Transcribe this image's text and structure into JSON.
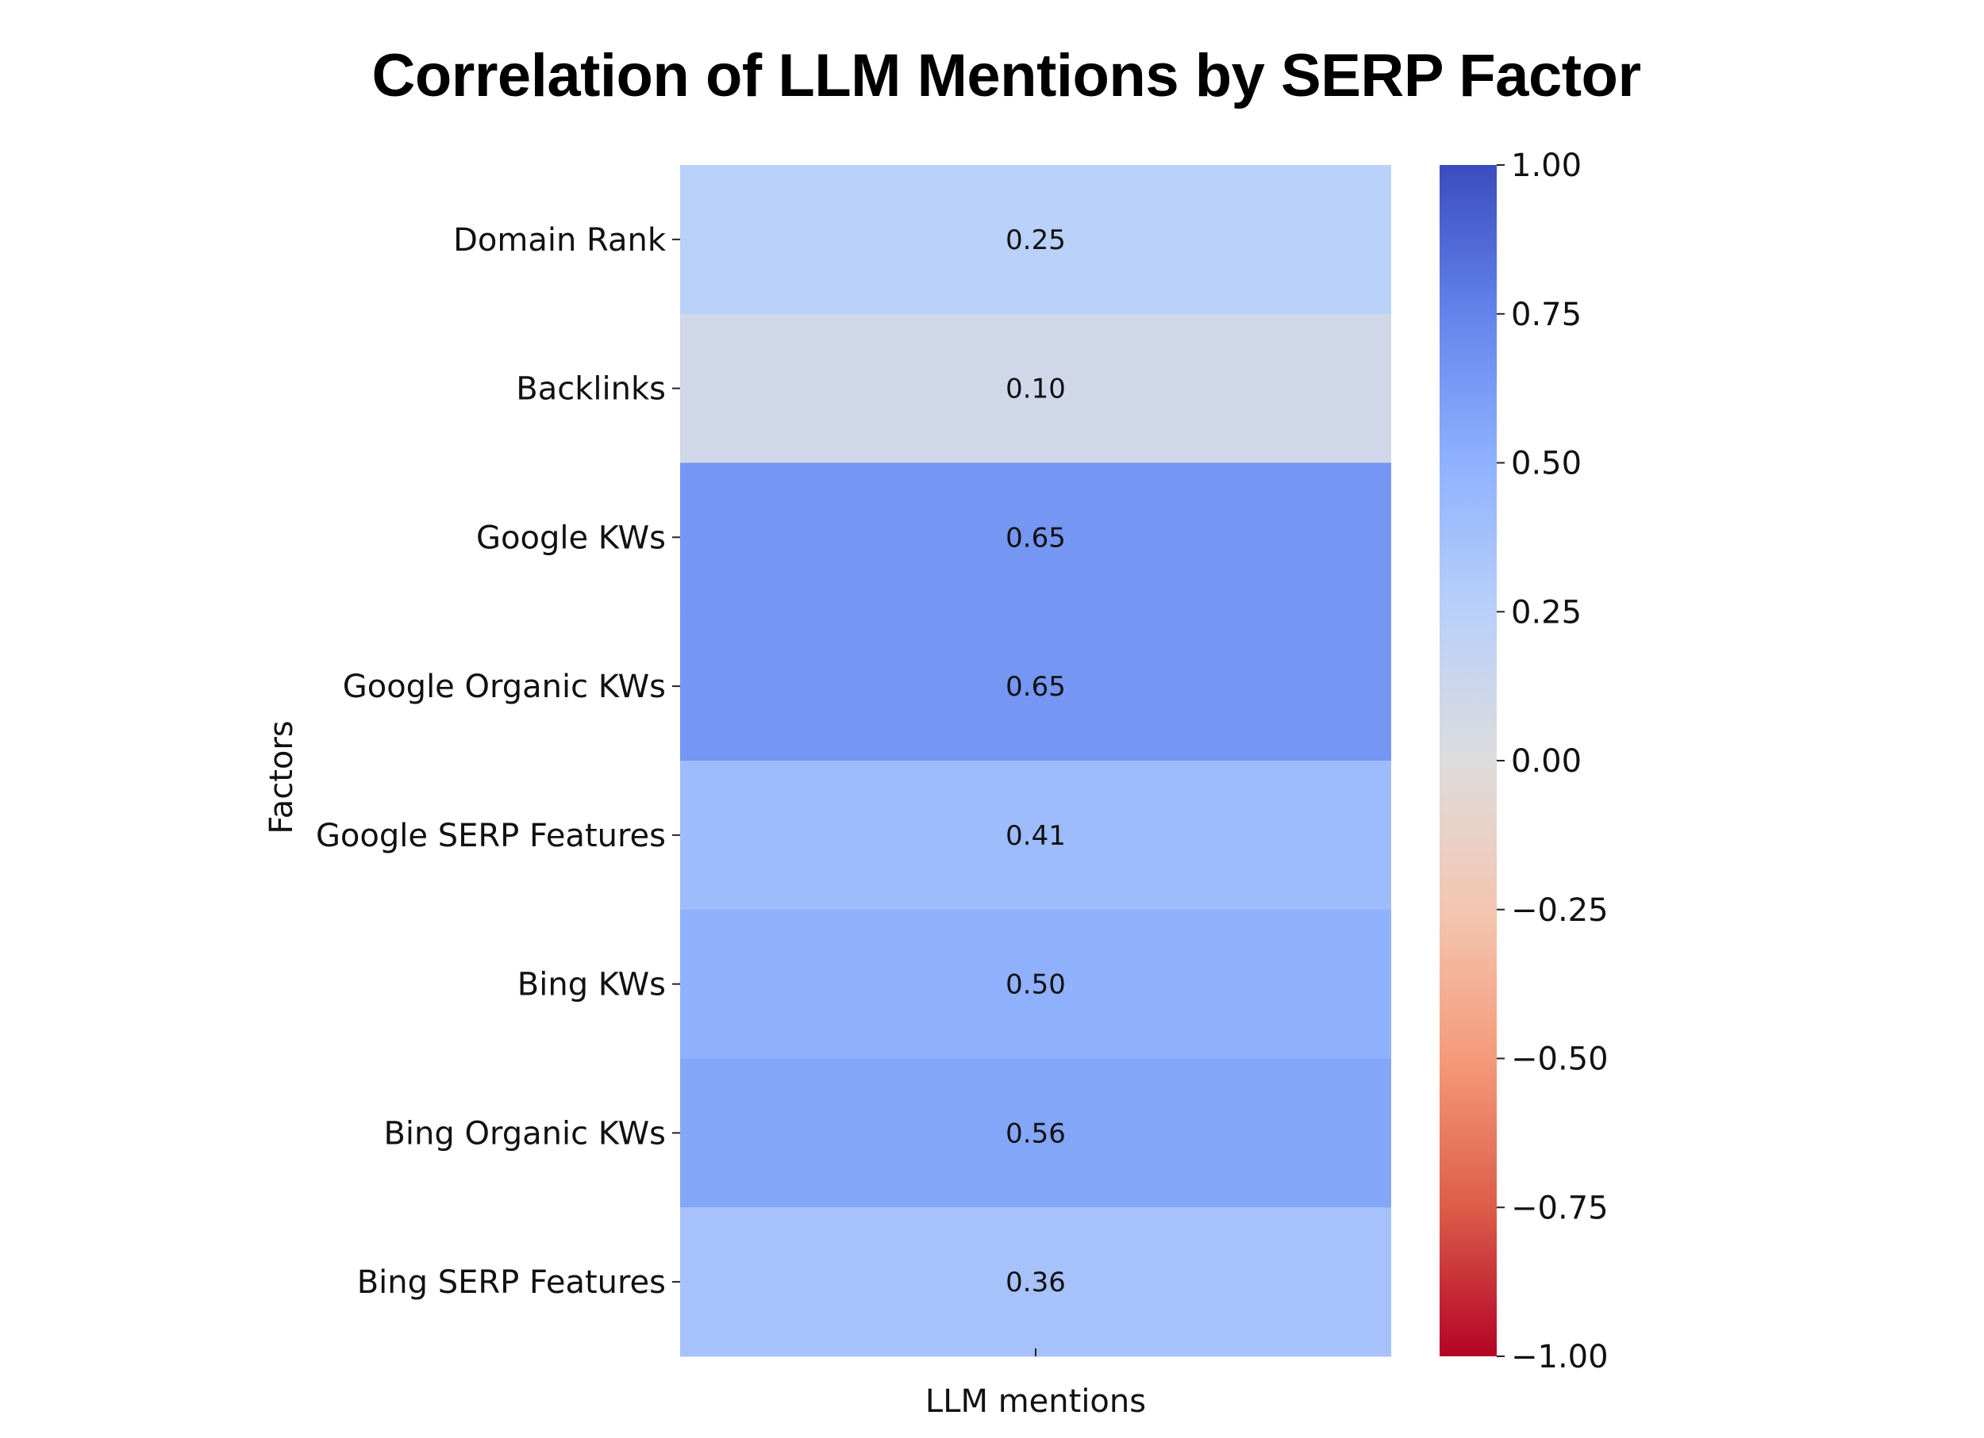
{
  "chart_data": {
    "type": "heatmap",
    "title": "Correlation of LLM Mentions by SERP Factor",
    "xlabel": "",
    "ylabel": "Factors",
    "columns": [
      "LLM mentions"
    ],
    "rows": [
      "Domain Rank",
      "Backlinks",
      "Google KWs",
      "Google Organic KWs",
      "Google SERP Features",
      "Bing KWs",
      "Bing Organic KWs",
      "Bing SERP Features"
    ],
    "values": [
      0.25,
      0.1,
      0.65,
      0.65,
      0.41,
      0.5,
      0.56,
      0.36
    ],
    "value_labels": [
      "0.25",
      "0.10",
      "0.65",
      "0.65",
      "0.41",
      "0.50",
      "0.56",
      "0.36"
    ],
    "colorbar": {
      "range": [
        -1.0,
        1.0
      ],
      "colormap": "coolwarm",
      "ticks": [
        1.0,
        0.75,
        0.5,
        0.25,
        0.0,
        -0.25,
        -0.5,
        -0.75,
        -1.0
      ],
      "tick_labels": [
        "1.00",
        "0.75",
        "0.50",
        "0.25",
        "0.00",
        "−0.25",
        "−0.50",
        "−0.75",
        "−1.00"
      ],
      "stops": [
        {
          "v": -1.0,
          "c": "#b40426"
        },
        {
          "v": -0.75,
          "c": "#dc5d4a"
        },
        {
          "v": -0.5,
          "c": "#f49a7b"
        },
        {
          "v": -0.25,
          "c": "#f3c6b0"
        },
        {
          "v": 0.0,
          "c": "#dddcdc"
        },
        {
          "v": 0.25,
          "c": "#b9d0f9"
        },
        {
          "v": 0.5,
          "c": "#8fb1fe"
        },
        {
          "v": 0.75,
          "c": "#6384eb"
        },
        {
          "v": 1.0,
          "c": "#3b4cc0"
        }
      ]
    }
  }
}
